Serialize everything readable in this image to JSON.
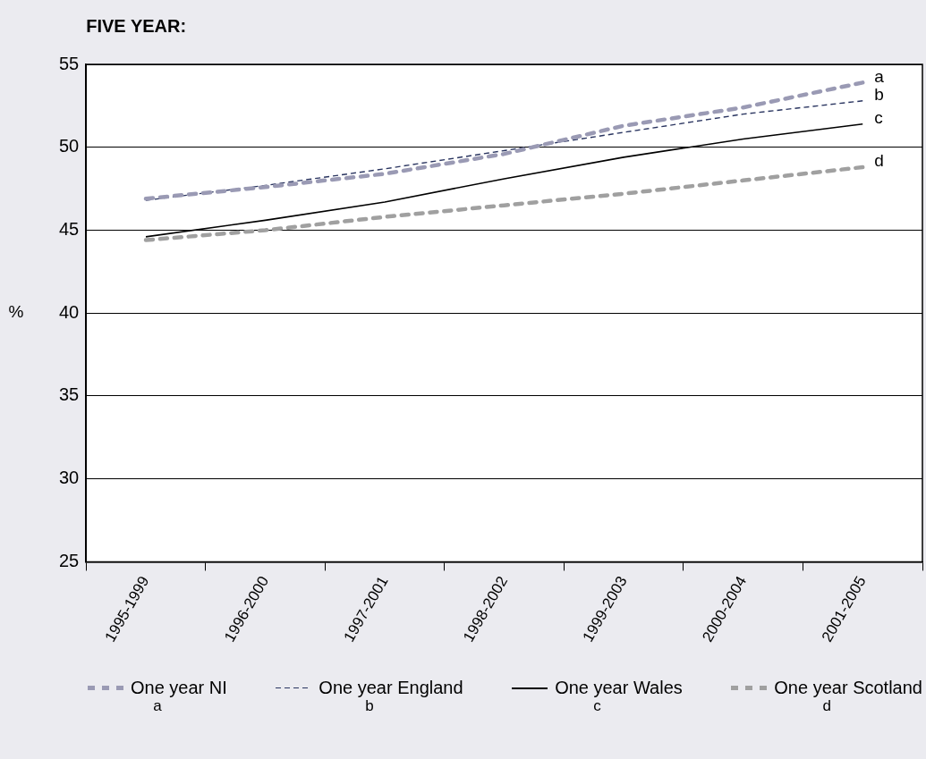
{
  "chart_data": {
    "type": "line",
    "title": "FIVE YEAR:",
    "ylabel": "%",
    "categories": [
      "1995-1999",
      "1996-2000",
      "1997-2001",
      "1998-2002",
      "1999-2003",
      "2000-2004",
      "2001-2005"
    ],
    "series": [
      {
        "name": "One year NI",
        "color": "#9a9ab4",
        "line_style": "dotted",
        "values": [
          46.9,
          47.6,
          48.4,
          49.6,
          51.3,
          52.4,
          53.9
        ]
      },
      {
        "name": "One year England",
        "color": "#2a3560",
        "line_style": "dashed",
        "values": [
          46.8,
          47.7,
          48.7,
          49.8,
          50.9,
          52.0,
          52.8
        ]
      },
      {
        "name": "One year Wales",
        "color": "#000000",
        "line_style": "solid",
        "values": [
          44.6,
          45.6,
          46.7,
          48.1,
          49.4,
          50.5,
          51.4
        ]
      },
      {
        "name": "One year Scotland",
        "color": "#a0a0a0",
        "line_style": "dotted",
        "values": [
          44.4,
          45.0,
          45.8,
          46.5,
          47.2,
          48.0,
          48.8
        ]
      }
    ],
    "annotations": [
      {
        "text": "a",
        "x": "2001-2005",
        "y": 53.9
      },
      {
        "text": "b",
        "x": "2001-2005",
        "y": 52.8
      },
      {
        "text": "c",
        "x": "2001-2005",
        "y": 51.4
      },
      {
        "text": "d",
        "x": "2001-2005",
        "y": 48.8
      }
    ],
    "ylim": [
      25,
      55
    ],
    "yticks": [
      25,
      30,
      35,
      40,
      45,
      50,
      55
    ],
    "grid": "y",
    "legend": "bottom",
    "marker": "none"
  }
}
